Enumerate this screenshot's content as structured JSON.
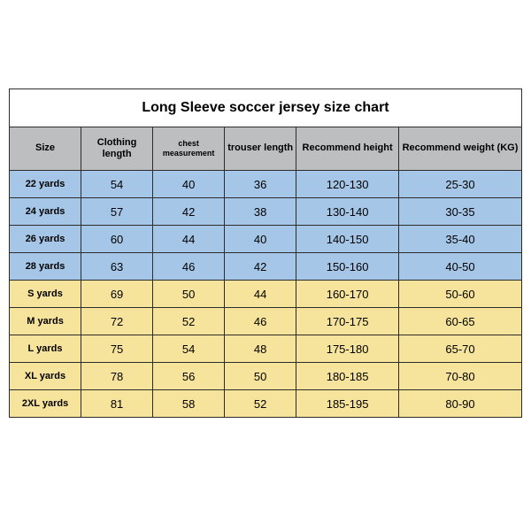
{
  "title": "Long Sleeve soccer jersey size chart",
  "columns": [
    "Size",
    "Clothing length",
    "chest measurement",
    "trouser length",
    "Recommend height",
    "Recommend weight (KG)"
  ],
  "col_widths_pct": [
    14,
    14,
    14,
    14,
    20,
    24
  ],
  "rows": [
    {
      "type": "blue",
      "cells": [
        "22 yards",
        "54",
        "40",
        "36",
        "120-130",
        "25-30"
      ]
    },
    {
      "type": "blue",
      "cells": [
        "24 yards",
        "57",
        "42",
        "38",
        "130-140",
        "30-35"
      ]
    },
    {
      "type": "blue",
      "cells": [
        "26 yards",
        "60",
        "44",
        "40",
        "140-150",
        "35-40"
      ]
    },
    {
      "type": "blue",
      "cells": [
        "28 yards",
        "63",
        "46",
        "42",
        "150-160",
        "40-50"
      ]
    },
    {
      "type": "yellow",
      "cells": [
        "S yards",
        "69",
        "50",
        "44",
        "160-170",
        "50-60"
      ]
    },
    {
      "type": "yellow",
      "cells": [
        "M yards",
        "72",
        "52",
        "46",
        "170-175",
        "60-65"
      ]
    },
    {
      "type": "yellow",
      "cells": [
        "L yards",
        "75",
        "54",
        "48",
        "175-180",
        "65-70"
      ]
    },
    {
      "type": "yellow",
      "cells": [
        "XL yards",
        "78",
        "56",
        "50",
        "180-185",
        "70-80"
      ]
    },
    {
      "type": "yellow",
      "cells": [
        "2XL yards",
        "81",
        "58",
        "52",
        "185-195",
        "80-90"
      ]
    }
  ]
}
